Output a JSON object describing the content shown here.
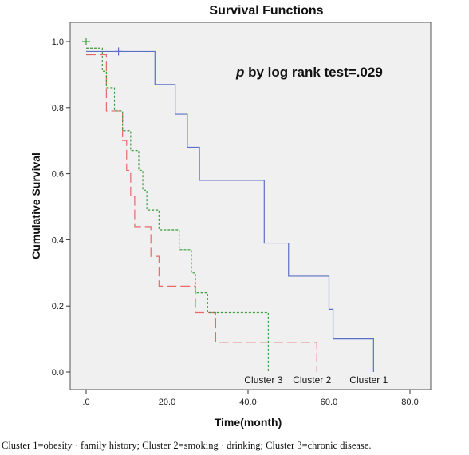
{
  "chart_data": {
    "type": "line",
    "subtype": "kaplan-meier step",
    "title": "Survival Functions",
    "xlabel": "Time(month)",
    "ylabel": "Cumulative Survival",
    "xlim": [
      0,
      80
    ],
    "ylim": [
      0,
      1.0
    ],
    "x_ticks": [
      ".0",
      "20.0",
      "40.0",
      "60.0",
      "80.0"
    ],
    "y_ticks": [
      "0.0",
      "0.2",
      "0.4",
      "0.6",
      "0.8",
      "1.0"
    ],
    "x_tick_values": [
      0,
      20,
      40,
      60,
      80
    ],
    "y_tick_values": [
      0,
      0.2,
      0.4,
      0.6,
      0.8,
      1.0
    ],
    "grid": false,
    "background": "#f0f0f0",
    "annotation": {
      "italic": "p",
      "text": " by log rank test=.029"
    },
    "series": [
      {
        "name": "Cluster 1",
        "color": "#5b6fc4",
        "dash": "solid",
        "x": [
          0,
          17,
          22,
          25,
          28,
          44,
          50,
          60,
          61,
          71
        ],
        "y": [
          0.97,
          0.87,
          0.78,
          0.68,
          0.58,
          0.39,
          0.29,
          0.19,
          0.1,
          0.0
        ],
        "censored": [
          {
            "x": 8,
            "y": 0.97
          }
        ]
      },
      {
        "name": "Cluster 2",
        "color": "#e8696b",
        "dash": "long-dash",
        "x": [
          0,
          5,
          9,
          10,
          11,
          12,
          16,
          18,
          27,
          32,
          57
        ],
        "y": [
          0.96,
          0.79,
          0.7,
          0.61,
          0.53,
          0.44,
          0.35,
          0.26,
          0.18,
          0.09,
          0.0
        ]
      },
      {
        "name": "Cluster 3",
        "color": "#3a9a3a",
        "dash": "dotted",
        "x": [
          0,
          4,
          5,
          7,
          9,
          11,
          13,
          14,
          15,
          18,
          23,
          26,
          27,
          30,
          45
        ],
        "y": [
          0.98,
          0.91,
          0.86,
          0.79,
          0.73,
          0.67,
          0.61,
          0.55,
          0.49,
          0.43,
          0.37,
          0.3,
          0.24,
          0.18,
          0.0
        ],
        "censored": [
          {
            "x": 0,
            "y": 1.0
          }
        ]
      }
    ]
  },
  "caption": "Cluster 1=obesity · family history; Cluster 2=smoking · drinking; Cluster 3=chronic disease."
}
